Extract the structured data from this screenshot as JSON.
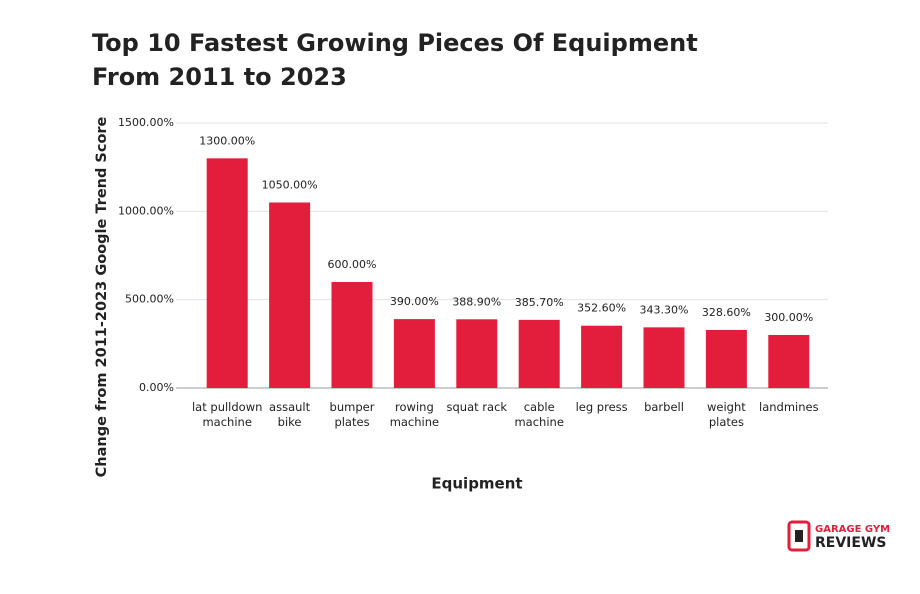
{
  "chart_data": {
    "type": "bar",
    "title": [
      "Top 10 Fastest Growing Pieces Of Equipment",
      "From 2011 to 2023"
    ],
    "x_label": "Equipment",
    "y_label": "Change from 2011-2023 Google Trend Score",
    "categories": [
      [
        "lat pulldown",
        "machine"
      ],
      [
        "assault",
        "bike"
      ],
      [
        "bumper",
        "plates"
      ],
      [
        "rowing",
        "machine"
      ],
      [
        "squat rack"
      ],
      [
        "cable",
        "machine"
      ],
      [
        "leg press"
      ],
      [
        "barbell"
      ],
      [
        "weight",
        "plates"
      ],
      [
        "landmines"
      ]
    ],
    "values": [
      1300,
      1050,
      600,
      390,
      388.9,
      385.7,
      352.6,
      343.3,
      328.6,
      300
    ],
    "value_labels": [
      "1300.00%",
      "1050.00%",
      "600.00%",
      "390.00%",
      "388.90%",
      "385.70%",
      "352.60%",
      "343.30%",
      "328.60%",
      "300.00%"
    ],
    "color": "#e31d3c",
    "ylim": [
      0,
      1500
    ],
    "yticks": [
      {
        "value": 0,
        "label": "0.00%"
      },
      {
        "value": 500,
        "label": "500.00%"
      },
      {
        "value": 1000,
        "label": "1000.00%"
      },
      {
        "value": 1500,
        "label": "1500.00%"
      }
    ],
    "grid": true
  },
  "branding": {
    "line1": "GARAGE GYM",
    "line2": "REVIEWS"
  }
}
